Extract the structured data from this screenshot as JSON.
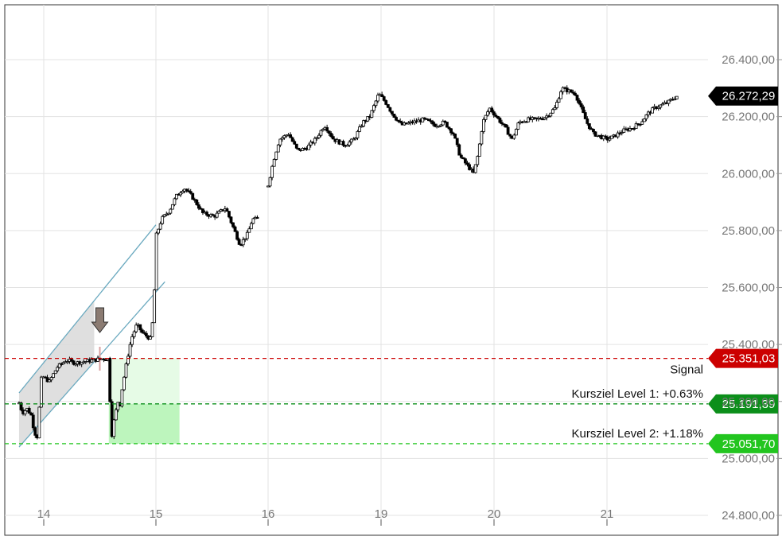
{
  "chart_data": {
    "type": "candlestick",
    "title": "",
    "xlabel": "",
    "ylabel": "",
    "ylim": [
      24800,
      26500
    ],
    "grid": true,
    "x_ticks": [
      "14",
      "15",
      "16",
      "19",
      "20",
      "21"
    ],
    "y_ticks": [
      {
        "value": 26400,
        "label": "26.400,00"
      },
      {
        "value": 26200,
        "label": "26.200,00"
      },
      {
        "value": 26000,
        "label": "26.000,00"
      },
      {
        "value": 25800,
        "label": "25.800,00"
      },
      {
        "value": 25600,
        "label": "25.600,00"
      },
      {
        "value": 25400,
        "label": "25.400,00"
      },
      {
        "value": 25200,
        "label": "25.200,00"
      },
      {
        "value": 25000,
        "label": "25.000,00"
      },
      {
        "value": 24800,
        "label": "24.800,00"
      }
    ],
    "series_points": [
      {
        "x": 13.78,
        "y": 25195
      },
      {
        "x": 13.81,
        "y": 25160
      },
      {
        "x": 13.85,
        "y": 25175
      },
      {
        "x": 13.89,
        "y": 25150
      },
      {
        "x": 13.91,
        "y": 25105
      },
      {
        "x": 13.94,
        "y": 25065
      },
      {
        "x": 13.98,
        "y": 25290
      },
      {
        "x": 14.05,
        "y": 25270
      },
      {
        "x": 14.12,
        "y": 25320
      },
      {
        "x": 14.2,
        "y": 25345
      },
      {
        "x": 14.28,
        "y": 25335
      },
      {
        "x": 14.36,
        "y": 25340
      },
      {
        "x": 14.44,
        "y": 25345
      },
      {
        "x": 14.52,
        "y": 25350
      },
      {
        "x": 14.58,
        "y": 25350
      },
      {
        "x": 14.6,
        "y": 25060
      },
      {
        "x": 14.62,
        "y": 25120
      },
      {
        "x": 14.66,
        "y": 25200
      },
      {
        "x": 14.68,
        "y": 25190
      },
      {
        "x": 14.7,
        "y": 25250
      },
      {
        "x": 14.74,
        "y": 25340
      },
      {
        "x": 14.78,
        "y": 25420
      },
      {
        "x": 14.83,
        "y": 25470
      },
      {
        "x": 14.88,
        "y": 25440
      },
      {
        "x": 14.95,
        "y": 25420
      },
      {
        "x": 14.98,
        "y": 25510
      },
      {
        "x": 15.0,
        "y": 25780
      },
      {
        "x": 15.05,
        "y": 25840
      },
      {
        "x": 15.12,
        "y": 25870
      },
      {
        "x": 15.18,
        "y": 25920
      },
      {
        "x": 15.25,
        "y": 25950
      },
      {
        "x": 15.32,
        "y": 25920
      },
      {
        "x": 15.42,
        "y": 25860
      },
      {
        "x": 15.52,
        "y": 25850
      },
      {
        "x": 15.62,
        "y": 25880
      },
      {
        "x": 15.68,
        "y": 25820
      },
      {
        "x": 15.75,
        "y": 25750
      },
      {
        "x": 15.82,
        "y": 25790
      },
      {
        "x": 15.86,
        "y": 25840
      },
      {
        "x": 15.92,
        "y": 25840
      },
      {
        "x": 16.0,
        "y": 25960
      },
      {
        "x": 16.05,
        "y": 26050
      },
      {
        "x": 16.1,
        "y": 26120
      },
      {
        "x": 16.18,
        "y": 26140
      },
      {
        "x": 16.26,
        "y": 26080
      },
      {
        "x": 16.34,
        "y": 26090
      },
      {
        "x": 16.42,
        "y": 26120
      },
      {
        "x": 16.5,
        "y": 26170
      },
      {
        "x": 16.58,
        "y": 26120
      },
      {
        "x": 16.68,
        "y": 26100
      },
      {
        "x": 16.76,
        "y": 26120
      },
      {
        "x": 16.84,
        "y": 26180
      },
      {
        "x": 16.9,
        "y": 26200
      },
      {
        "x": 16.98,
        "y": 26280
      },
      {
        "x": 17.04,
        "y": 26250
      },
      {
        "x": 17.1,
        "y": 26210
      },
      {
        "x": 17.18,
        "y": 26170
      },
      {
        "x": 17.28,
        "y": 26180
      },
      {
        "x": 17.38,
        "y": 26190
      },
      {
        "x": 17.48,
        "y": 26170
      },
      {
        "x": 17.56,
        "y": 26180
      },
      {
        "x": 17.64,
        "y": 26140
      },
      {
        "x": 17.7,
        "y": 26060
      },
      {
        "x": 17.76,
        "y": 26030
      },
      {
        "x": 17.82,
        "y": 26000
      },
      {
        "x": 17.86,
        "y": 26070
      },
      {
        "x": 17.9,
        "y": 26180
      },
      {
        "x": 17.96,
        "y": 26230
      },
      {
        "x": 18.04,
        "y": 26190
      },
      {
        "x": 18.1,
        "y": 26160
      },
      {
        "x": 18.16,
        "y": 26120
      },
      {
        "x": 18.22,
        "y": 26180
      },
      {
        "x": 18.3,
        "y": 26190
      },
      {
        "x": 18.38,
        "y": 26190
      },
      {
        "x": 18.46,
        "y": 26200
      },
      {
        "x": 18.54,
        "y": 26230
      },
      {
        "x": 18.6,
        "y": 26300
      },
      {
        "x": 18.66,
        "y": 26290
      },
      {
        "x": 18.72,
        "y": 26280
      },
      {
        "x": 18.76,
        "y": 26240
      },
      {
        "x": 18.82,
        "y": 26180
      },
      {
        "x": 18.88,
        "y": 26140
      },
      {
        "x": 18.94,
        "y": 26130
      },
      {
        "x": 19.0,
        "y": 26120
      },
      {
        "x": 19.06,
        "y": 26130
      },
      {
        "x": 19.14,
        "y": 26150
      },
      {
        "x": 19.22,
        "y": 26160
      },
      {
        "x": 19.3,
        "y": 26180
      },
      {
        "x": 19.36,
        "y": 26210
      },
      {
        "x": 19.42,
        "y": 26230
      },
      {
        "x": 19.48,
        "y": 26240
      },
      {
        "x": 19.54,
        "y": 26250
      },
      {
        "x": 19.58,
        "y": 26262
      },
      {
        "x": 19.62,
        "y": 26272
      }
    ],
    "channel": {
      "upper": [
        {
          "x": 13.78,
          "y": 25230
        },
        {
          "x": 15.0,
          "y": 25820
        }
      ],
      "lower": [
        {
          "x": 13.78,
          "y": 25040
        },
        {
          "x": 15.08,
          "y": 25620
        }
      ],
      "shaded_to_x": 14.45
    },
    "signal_marker": {
      "x": 14.5,
      "label": "↓"
    },
    "target_zone": {
      "x_from": 14.58,
      "x_to": 15.21
    },
    "levels": [
      {
        "label": "",
        "value_label": "26.272,29",
        "value": 26272.29,
        "color": "#000000",
        "line": "none"
      },
      {
        "label": "Signal",
        "value_label": "25.351,03",
        "value": 25351.03,
        "color": "#cc0000",
        "line": "dashed"
      },
      {
        "label": "Kursziel Level 1: +0.63%",
        "value_label": "25.191,39",
        "value": 25191.39,
        "color": "#0b8f1a",
        "line": "dashed"
      },
      {
        "label": "Kursziel Level 2: +1.18%",
        "value_label": "25.051,70",
        "value": 25051.7,
        "color": "#22c51f",
        "line": "dashed"
      }
    ],
    "colors": {
      "grid": "#e3e3e3",
      "axis_text": "#777777",
      "candle": "#000000",
      "channel": "#6aa9bf",
      "channel_fill": "#d9d9d9",
      "zone_fill": "#bdf5bd",
      "arrow": "#8b7b72"
    }
  }
}
